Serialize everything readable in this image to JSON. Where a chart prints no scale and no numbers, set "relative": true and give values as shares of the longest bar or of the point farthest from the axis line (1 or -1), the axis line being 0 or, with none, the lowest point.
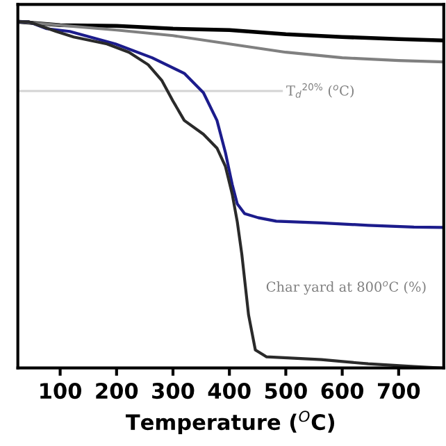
{
  "chart_data": {
    "type": "line",
    "relative": true,
    "xlabel": "Temperature ($^{O}$C)",
    "xlim": [
      25,
      780
    ],
    "xticks": [
      100,
      200,
      300,
      400,
      500,
      600,
      700
    ],
    "tick_labels": "x",
    "legend": false,
    "grid": false,
    "series": [
      {
        "color": "#000000",
        "x": [
          25,
          100,
          200,
          300,
          400,
          500,
          600,
          700,
          780
        ],
        "values": [
          1.0,
          0.99,
          0.988,
          0.98,
          0.976,
          0.964,
          0.956,
          0.95,
          0.946
        ]
      },
      {
        "color": "#808080",
        "x": [
          25,
          100,
          200,
          300,
          400,
          500,
          600,
          700,
          780
        ],
        "values": [
          1.0,
          0.99,
          0.976,
          0.96,
          0.936,
          0.912,
          0.896,
          0.888,
          0.884
        ]
      },
      {
        "color": "#1c1c8c",
        "x": [
          25,
          44,
          76,
          117,
          198,
          263,
          320,
          354,
          378,
          393,
          405,
          414,
          427,
          451,
          483,
          563,
          646,
          727,
          776
        ],
        "values": [
          1.0,
          1.0,
          0.98,
          0.972,
          0.936,
          0.896,
          0.851,
          0.795,
          0.715,
          0.622,
          0.53,
          0.474,
          0.446,
          0.434,
          0.424,
          0.419,
          0.412,
          0.407,
          0.406
        ]
      },
      {
        "color": "#2a2a2a",
        "x": [
          25,
          44,
          93,
          124,
          183,
          222,
          256,
          280,
          300,
          320,
          354,
          378,
          393,
          405,
          414,
          422,
          434,
          446,
          466,
          563,
          646,
          727,
          776
        ],
        "values": [
          1.0,
          1.0,
          0.972,
          0.956,
          0.936,
          0.912,
          0.876,
          0.831,
          0.771,
          0.715,
          0.675,
          0.635,
          0.582,
          0.502,
          0.422,
          0.329,
          0.153,
          0.052,
          0.032,
          0.024,
          0.012,
          0.004,
          0.0
        ]
      }
    ],
    "ref_lines": [
      {
        "axis": "y",
        "value": 0.8,
        "color": "#d3d3d3",
        "label": "T$_{d}$$^{20%}$ ($^{o}$C)"
      }
    ],
    "annotations": [
      "Char yard at 800$^{o}$C (%)"
    ]
  }
}
